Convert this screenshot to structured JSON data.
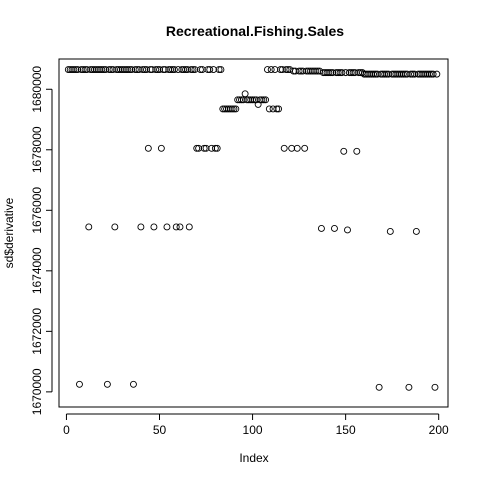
{
  "chart_data": {
    "type": "scatter",
    "title": "Recreational.Fishing.Sales",
    "xlabel": "Index",
    "ylabel": "sd$derivative",
    "xlim": [
      -4,
      205
    ],
    "ylim": [
      1669500,
      1681000
    ],
    "x_ticks": [
      0,
      50,
      100,
      150,
      200
    ],
    "x_tick_labels": [
      "0",
      "50",
      "100",
      "150",
      "200"
    ],
    "y_ticks": [
      1670000,
      1672000,
      1674000,
      1676000,
      1678000,
      1680000
    ],
    "y_tick_labels": [
      "1670000",
      "1672000",
      "1674000",
      "1676000",
      "1678000",
      "1680000"
    ],
    "grid": false,
    "marker": "open-circle",
    "points": [
      [
        1,
        1680650
      ],
      [
        2,
        1680650
      ],
      [
        3,
        1680650
      ],
      [
        4,
        1680650
      ],
      [
        5,
        1680650
      ],
      [
        6,
        1680650
      ],
      [
        7,
        1670250
      ],
      [
        8,
        1680650
      ],
      [
        9,
        1680650
      ],
      [
        10,
        1680650
      ],
      [
        11,
        1680650
      ],
      [
        12,
        1675450
      ],
      [
        13,
        1680650
      ],
      [
        14,
        1680650
      ],
      [
        15,
        1680650
      ],
      [
        16,
        1680650
      ],
      [
        17,
        1680650
      ],
      [
        18,
        1680650
      ],
      [
        19,
        1680650
      ],
      [
        20,
        1680650
      ],
      [
        21,
        1680650
      ],
      [
        22,
        1670250
      ],
      [
        23,
        1680650
      ],
      [
        24,
        1680650
      ],
      [
        25,
        1680650
      ],
      [
        26,
        1675450
      ],
      [
        27,
        1680650
      ],
      [
        28,
        1680650
      ],
      [
        29,
        1680650
      ],
      [
        30,
        1680650
      ],
      [
        31,
        1680650
      ],
      [
        32,
        1680650
      ],
      [
        33,
        1680650
      ],
      [
        34,
        1680650
      ],
      [
        35,
        1680650
      ],
      [
        36,
        1670250
      ],
      [
        37,
        1680650
      ],
      [
        38,
        1680650
      ],
      [
        39,
        1680650
      ],
      [
        40,
        1675450
      ],
      [
        41,
        1680650
      ],
      [
        42,
        1680650
      ],
      [
        43,
        1680650
      ],
      [
        44,
        1678050
      ],
      [
        45,
        1680650
      ],
      [
        46,
        1680650
      ],
      [
        47,
        1675450
      ],
      [
        48,
        1680650
      ],
      [
        49,
        1680650
      ],
      [
        50,
        1680650
      ],
      [
        51,
        1678050
      ],
      [
        52,
        1680650
      ],
      [
        53,
        1680650
      ],
      [
        54,
        1675450
      ],
      [
        55,
        1680650
      ],
      [
        56,
        1680650
      ],
      [
        57,
        1680650
      ],
      [
        58,
        1680650
      ],
      [
        59,
        1675450
      ],
      [
        60,
        1680650
      ],
      [
        61,
        1675450
      ],
      [
        62,
        1680650
      ],
      [
        63,
        1680650
      ],
      [
        64,
        1680650
      ],
      [
        65,
        1680650
      ],
      [
        66,
        1675450
      ],
      [
        67,
        1680650
      ],
      [
        68,
        1680650
      ],
      [
        69,
        1680650
      ],
      [
        70,
        1678050
      ],
      [
        71,
        1678050
      ],
      [
        72,
        1680650
      ],
      [
        73,
        1680650
      ],
      [
        74,
        1678050
      ],
      [
        75,
        1678050
      ],
      [
        76,
        1680650
      ],
      [
        77,
        1680650
      ],
      [
        78,
        1678050
      ],
      [
        79,
        1680650
      ],
      [
        80,
        1678050
      ],
      [
        81,
        1678050
      ],
      [
        82,
        1680650
      ],
      [
        83,
        1680650
      ],
      [
        84,
        1679350
      ],
      [
        85,
        1679350
      ],
      [
        86,
        1679350
      ],
      [
        87,
        1679350
      ],
      [
        88,
        1679350
      ],
      [
        89,
        1679350
      ],
      [
        90,
        1679350
      ],
      [
        91,
        1679350
      ],
      [
        92,
        1679650
      ],
      [
        93,
        1679650
      ],
      [
        94,
        1679650
      ],
      [
        95,
        1679650
      ],
      [
        96,
        1679850
      ],
      [
        97,
        1679650
      ],
      [
        98,
        1679650
      ],
      [
        99,
        1679650
      ],
      [
        100,
        1679650
      ],
      [
        101,
        1679650
      ],
      [
        102,
        1679650
      ],
      [
        103,
        1679500
      ],
      [
        104,
        1679650
      ],
      [
        105,
        1679650
      ],
      [
        106,
        1679650
      ],
      [
        107,
        1679650
      ],
      [
        108,
        1680650
      ],
      [
        109,
        1679350
      ],
      [
        110,
        1680650
      ],
      [
        111,
        1679350
      ],
      [
        112,
        1680650
      ],
      [
        113,
        1679350
      ],
      [
        114,
        1679350
      ],
      [
        115,
        1680650
      ],
      [
        116,
        1680650
      ],
      [
        117,
        1678050
      ],
      [
        118,
        1680650
      ],
      [
        119,
        1680650
      ],
      [
        120,
        1680650
      ],
      [
        121,
        1678050
      ],
      [
        122,
        1680600
      ],
      [
        123,
        1680600
      ],
      [
        124,
        1678050
      ],
      [
        125,
        1680600
      ],
      [
        126,
        1680600
      ],
      [
        127,
        1680600
      ],
      [
        128,
        1678050
      ],
      [
        129,
        1680600
      ],
      [
        130,
        1680600
      ],
      [
        131,
        1680600
      ],
      [
        132,
        1680600
      ],
      [
        133,
        1680600
      ],
      [
        134,
        1680600
      ],
      [
        135,
        1680600
      ],
      [
        136,
        1680600
      ],
      [
        137,
        1675400
      ],
      [
        138,
        1680550
      ],
      [
        139,
        1680550
      ],
      [
        140,
        1680550
      ],
      [
        141,
        1680550
      ],
      [
        142,
        1680550
      ],
      [
        143,
        1680550
      ],
      [
        144,
        1675400
      ],
      [
        145,
        1680550
      ],
      [
        146,
        1680550
      ],
      [
        147,
        1680550
      ],
      [
        148,
        1680550
      ],
      [
        149,
        1677950
      ],
      [
        150,
        1680550
      ],
      [
        151,
        1675350
      ],
      [
        152,
        1680550
      ],
      [
        153,
        1680550
      ],
      [
        154,
        1680550
      ],
      [
        155,
        1680550
      ],
      [
        156,
        1677950
      ],
      [
        157,
        1680550
      ],
      [
        158,
        1680550
      ],
      [
        159,
        1680550
      ],
      [
        160,
        1680500
      ],
      [
        161,
        1680500
      ],
      [
        162,
        1680500
      ],
      [
        163,
        1680500
      ],
      [
        164,
        1680500
      ],
      [
        165,
        1680500
      ],
      [
        166,
        1680500
      ],
      [
        167,
        1680500
      ],
      [
        168,
        1670150
      ],
      [
        169,
        1680500
      ],
      [
        170,
        1680500
      ],
      [
        171,
        1680500
      ],
      [
        172,
        1680500
      ],
      [
        173,
        1680500
      ],
      [
        174,
        1675300
      ],
      [
        175,
        1680500
      ],
      [
        176,
        1680500
      ],
      [
        177,
        1680500
      ],
      [
        178,
        1680500
      ],
      [
        179,
        1680500
      ],
      [
        180,
        1680500
      ],
      [
        181,
        1680500
      ],
      [
        182,
        1680500
      ],
      [
        183,
        1680500
      ],
      [
        184,
        1670150
      ],
      [
        185,
        1680500
      ],
      [
        186,
        1680500
      ],
      [
        187,
        1680500
      ],
      [
        188,
        1675300
      ],
      [
        189,
        1680500
      ],
      [
        190,
        1680500
      ],
      [
        191,
        1680500
      ],
      [
        192,
        1680500
      ],
      [
        193,
        1680500
      ],
      [
        194,
        1680500
      ],
      [
        195,
        1680500
      ],
      [
        196,
        1680500
      ],
      [
        197,
        1680500
      ],
      [
        198,
        1670150
      ],
      [
        199,
        1680500
      ]
    ]
  }
}
